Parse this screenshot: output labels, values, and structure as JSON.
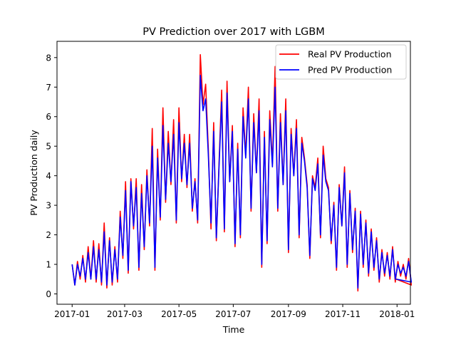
{
  "chart_data": {
    "type": "line",
    "title": "PV Prediction over 2017 with LGBM",
    "xlabel": "Time",
    "ylabel": "PV Production daily",
    "xlim": [
      "2016-12-15",
      "2018-01-16"
    ],
    "ylim": [
      -0.35,
      8.55
    ],
    "xticks": [
      "2017-01",
      "2017-03",
      "2017-05",
      "2017-07",
      "2017-09",
      "2017-11",
      "2018-01"
    ],
    "yticks": [
      0,
      1,
      2,
      3,
      4,
      5,
      6,
      7,
      8
    ],
    "grid": false,
    "legend_position": "upper right",
    "series": [
      {
        "name": "Real PV Production",
        "color": "#ff0000",
        "start_date": "2017-01-01",
        "step_days": 3,
        "values": [
          1.0,
          0.3,
          1.1,
          0.5,
          1.3,
          0.4,
          1.6,
          0.5,
          1.8,
          0.4,
          1.7,
          0.3,
          2.4,
          0.2,
          1.9,
          0.3,
          1.6,
          0.4,
          2.8,
          1.2,
          3.8,
          0.7,
          3.9,
          2.2,
          3.9,
          0.8,
          3.7,
          1.5,
          4.2,
          2.3,
          5.6,
          0.8,
          4.9,
          2.5,
          6.3,
          3.1,
          5.5,
          3.7,
          5.9,
          2.4,
          6.3,
          3.8,
          5.4,
          3.6,
          5.4,
          2.8,
          3.9,
          2.4,
          8.1,
          6.4,
          7.1,
          4.9,
          2.2,
          5.8,
          1.8,
          4.4,
          6.9,
          2.1,
          7.2,
          3.8,
          5.7,
          1.6,
          5.1,
          1.9,
          6.3,
          4.7,
          7.0,
          2.8,
          6.1,
          4.1,
          6.6,
          0.9,
          5.5,
          1.7,
          6.2,
          4.4,
          7.7,
          2.8,
          6.1,
          3.7,
          6.6,
          1.4,
          5.6,
          4.0,
          5.9,
          1.9,
          5.3,
          4.6,
          3.7,
          1.2,
          4.0,
          3.6,
          4.6,
          1.9,
          5.0,
          3.9,
          3.6,
          1.7,
          3.1,
          0.8,
          3.7,
          2.3,
          4.3,
          0.9,
          3.5,
          1.4,
          2.9,
          0.1,
          2.8,
          0.9,
          2.5,
          0.6,
          2.2,
          0.8,
          1.9,
          0.4,
          1.5,
          0.6,
          1.4,
          0.5,
          1.6,
          0.4,
          1.1,
          0.6,
          1.0,
          0.5,
          1.2,
          0.3
        ],
        "last_value": 0.5
      },
      {
        "name": "Pred PV Production",
        "color": "#0000ff",
        "start_date": "2017-01-01",
        "step_days": 3,
        "values": [
          1.0,
          0.3,
          1.0,
          0.6,
          1.2,
          0.5,
          1.4,
          0.5,
          1.6,
          0.5,
          1.5,
          0.4,
          2.1,
          0.3,
          1.8,
          0.4,
          1.5,
          0.5,
          2.6,
          1.3,
          3.5,
          0.8,
          3.8,
          2.3,
          3.6,
          0.9,
          3.4,
          1.6,
          4.0,
          2.4,
          5.0,
          0.9,
          4.6,
          2.6,
          5.7,
          3.2,
          5.1,
          3.8,
          5.4,
          2.5,
          5.8,
          3.9,
          5.1,
          3.7,
          5.1,
          2.9,
          3.8,
          2.5,
          7.4,
          6.2,
          6.6,
          4.7,
          2.4,
          5.5,
          1.9,
          4.3,
          6.5,
          2.2,
          6.8,
          3.8,
          5.5,
          1.7,
          4.9,
          2.0,
          6.0,
          4.6,
          6.6,
          2.9,
          5.8,
          4.1,
          6.2,
          1.0,
          5.3,
          1.8,
          5.9,
          4.3,
          7.0,
          2.9,
          5.8,
          3.7,
          6.2,
          1.5,
          5.4,
          4.0,
          5.6,
          2.0,
          5.1,
          4.5,
          3.6,
          1.3,
          3.9,
          3.5,
          4.4,
          2.0,
          4.7,
          3.8,
          3.5,
          1.8,
          3.0,
          0.9,
          3.6,
          2.3,
          4.1,
          1.0,
          3.4,
          1.5,
          2.8,
          0.2,
          2.7,
          1.0,
          2.4,
          0.7,
          2.1,
          0.9,
          1.8,
          0.5,
          1.4,
          0.7,
          1.3,
          0.6,
          1.5,
          0.5,
          1.0,
          0.7,
          0.9,
          0.6,
          1.1,
          0.4
        ],
        "last_value": 0.5
      }
    ]
  }
}
